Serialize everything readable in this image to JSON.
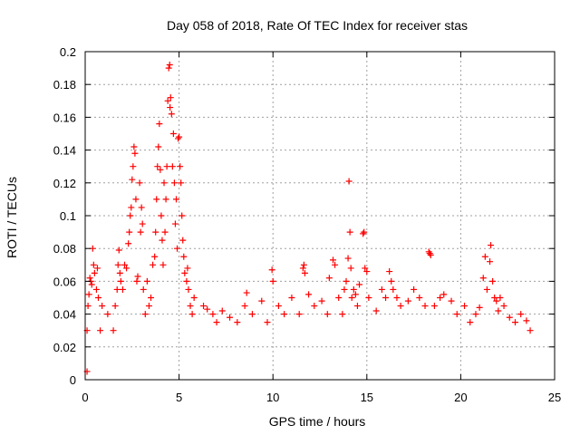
{
  "chart_data": {
    "type": "scatter",
    "title": "Day 058 of 2018, Rate Of TEC Index for receiver stas",
    "xlabel": "GPS time / hours",
    "ylabel": "ROTI / TECUs",
    "xlim": [
      0,
      25
    ],
    "ylim": [
      0,
      0.2
    ],
    "x_ticks": [
      "0",
      "5",
      "10",
      "15",
      "20",
      "25"
    ],
    "y_ticks": [
      "0",
      "0.02",
      "0.04",
      "0.06",
      "0.08",
      "0.1",
      "0.12",
      "0.14",
      "0.16",
      "0.18",
      "0.2"
    ],
    "grid": true,
    "marker": "plus",
    "marker_color": "#ff0000",
    "series": [
      {
        "points": [
          [
            0.1,
            0.005
          ],
          [
            0.1,
            0.03
          ],
          [
            0.15,
            0.045
          ],
          [
            0.2,
            0.052
          ],
          [
            0.25,
            0.062
          ],
          [
            0.3,
            0.06
          ],
          [
            0.35,
            0.058
          ],
          [
            0.4,
            0.08
          ],
          [
            0.45,
            0.07
          ],
          [
            0.5,
            0.065
          ],
          [
            0.6,
            0.055
          ],
          [
            0.65,
            0.068
          ],
          [
            0.7,
            0.05
          ],
          [
            0.8,
            0.03
          ],
          [
            0.9,
            0.045
          ],
          [
            1.2,
            0.04
          ],
          [
            1.5,
            0.03
          ],
          [
            1.6,
            0.045
          ],
          [
            1.7,
            0.055
          ],
          [
            1.75,
            0.07
          ],
          [
            1.8,
            0.079
          ],
          [
            1.85,
            0.065
          ],
          [
            1.9,
            0.06
          ],
          [
            2.0,
            0.055
          ],
          [
            2.1,
            0.07
          ],
          [
            2.2,
            0.068
          ],
          [
            2.3,
            0.083
          ],
          [
            2.35,
            0.09
          ],
          [
            2.4,
            0.1
          ],
          [
            2.45,
            0.105
          ],
          [
            2.5,
            0.122
          ],
          [
            2.55,
            0.13
          ],
          [
            2.6,
            0.142
          ],
          [
            2.65,
            0.138
          ],
          [
            2.7,
            0.11
          ],
          [
            2.75,
            0.06
          ],
          [
            2.8,
            0.063
          ],
          [
            2.9,
            0.12
          ],
          [
            2.95,
            0.09
          ],
          [
            3.0,
            0.105
          ],
          [
            3.05,
            0.095
          ],
          [
            3.1,
            0.055
          ],
          [
            3.2,
            0.04
          ],
          [
            3.3,
            0.06
          ],
          [
            3.4,
            0.045
          ],
          [
            3.5,
            0.05
          ],
          [
            3.6,
            0.07
          ],
          [
            3.7,
            0.075
          ],
          [
            3.75,
            0.09
          ],
          [
            3.8,
            0.11
          ],
          [
            3.85,
            0.13
          ],
          [
            3.9,
            0.142
          ],
          [
            3.95,
            0.156
          ],
          [
            4.0,
            0.128
          ],
          [
            4.05,
            0.1
          ],
          [
            4.1,
            0.085
          ],
          [
            4.15,
            0.07
          ],
          [
            4.2,
            0.12
          ],
          [
            4.25,
            0.09
          ],
          [
            4.3,
            0.11
          ],
          [
            4.35,
            0.13
          ],
          [
            4.4,
            0.17
          ],
          [
            4.45,
            0.19
          ],
          [
            4.5,
            0.192
          ],
          [
            4.52,
            0.166
          ],
          [
            4.55,
            0.172
          ],
          [
            4.6,
            0.162
          ],
          [
            4.65,
            0.13
          ],
          [
            4.7,
            0.15
          ],
          [
            4.75,
            0.12
          ],
          [
            4.8,
            0.095
          ],
          [
            4.85,
            0.11
          ],
          [
            4.9,
            0.08
          ],
          [
            4.95,
            0.147
          ],
          [
            5.0,
            0.148
          ],
          [
            5.05,
            0.13
          ],
          [
            5.1,
            0.12
          ],
          [
            5.15,
            0.1
          ],
          [
            5.2,
            0.085
          ],
          [
            5.25,
            0.075
          ],
          [
            5.3,
            0.065
          ],
          [
            5.4,
            0.06
          ],
          [
            5.45,
            0.068
          ],
          [
            5.5,
            0.055
          ],
          [
            5.6,
            0.045
          ],
          [
            5.7,
            0.04
          ],
          [
            5.8,
            0.05
          ],
          [
            6.3,
            0.045
          ],
          [
            6.5,
            0.043
          ],
          [
            6.8,
            0.04
          ],
          [
            7.0,
            0.035
          ],
          [
            7.3,
            0.042
          ],
          [
            7.7,
            0.038
          ],
          [
            8.1,
            0.035
          ],
          [
            8.5,
            0.045
          ],
          [
            8.6,
            0.053
          ],
          [
            8.9,
            0.04
          ],
          [
            9.4,
            0.048
          ],
          [
            9.7,
            0.035
          ],
          [
            9.95,
            0.067
          ],
          [
            10.0,
            0.06
          ],
          [
            10.3,
            0.045
          ],
          [
            10.6,
            0.04
          ],
          [
            11.0,
            0.05
          ],
          [
            11.4,
            0.04
          ],
          [
            11.6,
            0.068
          ],
          [
            11.65,
            0.07
          ],
          [
            11.7,
            0.065
          ],
          [
            11.9,
            0.052
          ],
          [
            12.2,
            0.045
          ],
          [
            12.6,
            0.048
          ],
          [
            12.9,
            0.04
          ],
          [
            13.0,
            0.062
          ],
          [
            13.2,
            0.073
          ],
          [
            13.3,
            0.07
          ],
          [
            13.5,
            0.05
          ],
          [
            13.7,
            0.04
          ],
          [
            13.8,
            0.055
          ],
          [
            13.9,
            0.06
          ],
          [
            14.0,
            0.074
          ],
          [
            14.05,
            0.121
          ],
          [
            14.1,
            0.09
          ],
          [
            14.15,
            0.068
          ],
          [
            14.2,
            0.05
          ],
          [
            14.3,
            0.055
          ],
          [
            14.4,
            0.052
          ],
          [
            14.5,
            0.045
          ],
          [
            14.6,
            0.058
          ],
          [
            14.8,
            0.089
          ],
          [
            14.85,
            0.09
          ],
          [
            14.9,
            0.068
          ],
          [
            15.0,
            0.066
          ],
          [
            15.1,
            0.05
          ],
          [
            15.5,
            0.042
          ],
          [
            15.8,
            0.055
          ],
          [
            16.0,
            0.05
          ],
          [
            16.2,
            0.066
          ],
          [
            16.3,
            0.06
          ],
          [
            16.4,
            0.055
          ],
          [
            16.6,
            0.05
          ],
          [
            16.8,
            0.045
          ],
          [
            17.2,
            0.048
          ],
          [
            17.5,
            0.055
          ],
          [
            17.8,
            0.05
          ],
          [
            18.1,
            0.045
          ],
          [
            18.3,
            0.078
          ],
          [
            18.35,
            0.077
          ],
          [
            18.4,
            0.076
          ],
          [
            18.6,
            0.045
          ],
          [
            18.9,
            0.05
          ],
          [
            19.1,
            0.052
          ],
          [
            19.5,
            0.048
          ],
          [
            19.8,
            0.04
          ],
          [
            20.2,
            0.045
          ],
          [
            20.5,
            0.035
          ],
          [
            20.8,
            0.04
          ],
          [
            21.0,
            0.044
          ],
          [
            21.2,
            0.062
          ],
          [
            21.3,
            0.075
          ],
          [
            21.4,
            0.055
          ],
          [
            21.55,
            0.072
          ],
          [
            21.6,
            0.082
          ],
          [
            21.7,
            0.06
          ],
          [
            21.8,
            0.05
          ],
          [
            21.9,
            0.048
          ],
          [
            22.0,
            0.042
          ],
          [
            22.1,
            0.05
          ],
          [
            22.3,
            0.045
          ],
          [
            22.6,
            0.038
          ],
          [
            22.9,
            0.035
          ],
          [
            23.2,
            0.04
          ],
          [
            23.5,
            0.036
          ],
          [
            23.7,
            0.03
          ]
        ]
      }
    ]
  }
}
